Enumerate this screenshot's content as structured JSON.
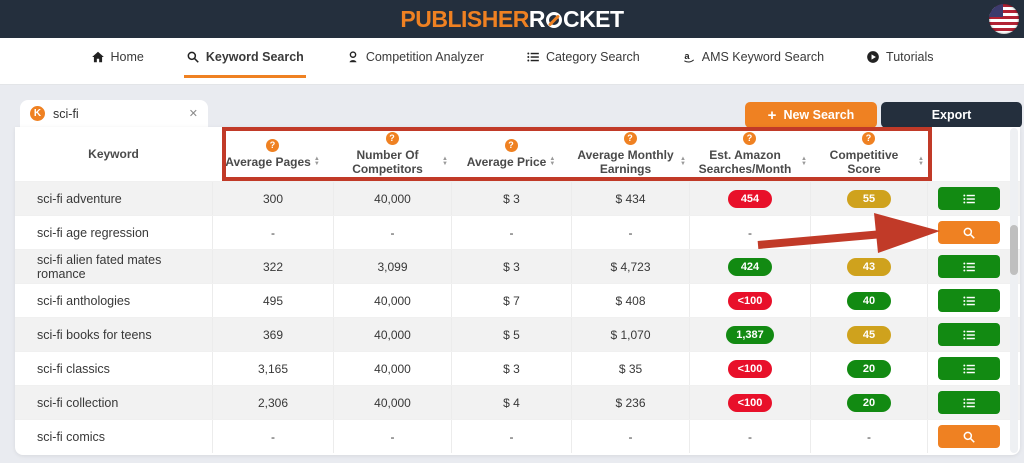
{
  "colors": {
    "accent_orange": "#ef8122",
    "dark_navy": "#242f3d",
    "pill_red": "#e8102a",
    "pill_green": "#128a12",
    "pill_gold": "#cfa21d",
    "annotation_red": "#c13a28"
  },
  "brand": {
    "name_left": "PUBLISHER",
    "name_right_pre": "R",
    "name_right_post": "CKET"
  },
  "nav": {
    "items": [
      {
        "label": "Home",
        "icon": "home-icon",
        "active": false
      },
      {
        "label": "Keyword Search",
        "icon": "search-icon",
        "active": true
      },
      {
        "label": "Competition Analyzer",
        "icon": "person-icon",
        "active": false
      },
      {
        "label": "Category Search",
        "icon": "list-icon",
        "active": false
      },
      {
        "label": "AMS Keyword Search",
        "icon": "amazon-icon",
        "active": false
      },
      {
        "label": "Tutorials",
        "icon": "play-icon",
        "active": false
      }
    ]
  },
  "toolbar": {
    "tab": {
      "favicon_letter": "K",
      "label": "sci-fi",
      "close_glyph": "✕"
    },
    "plus_glyph": "+",
    "new_search_label": "New Search",
    "export_label": "Export"
  },
  "table": {
    "help_glyph": "?",
    "sort_up_glyph": "▲",
    "sort_down_glyph": "▼",
    "columns": [
      {
        "label": "Keyword",
        "help": false,
        "sortable": false
      },
      {
        "label": "Average Pages",
        "help": true,
        "sortable": true
      },
      {
        "label": "Number Of Competitors",
        "help": true,
        "sortable": true
      },
      {
        "label": "Average Price",
        "help": true,
        "sortable": true
      },
      {
        "label": "Average Monthly Earnings",
        "help": true,
        "sortable": true
      },
      {
        "label": "Est. Amazon Searches/Month",
        "help": true,
        "sortable": true
      },
      {
        "label": "Competitive Score",
        "help": true,
        "sortable": true
      }
    ],
    "rows": [
      {
        "keyword": "sci-fi adventure",
        "pages": "300",
        "competitors": "40,000",
        "price": "$ 3",
        "earnings": "$ 434",
        "searches": "454",
        "searches_color": "red",
        "score": "55",
        "score_color": "gold",
        "action": "list"
      },
      {
        "keyword": "sci-fi age regression",
        "pages": "-",
        "competitors": "-",
        "price": "-",
        "earnings": "-",
        "searches": "-",
        "searches_color": null,
        "score": "-",
        "score_color": null,
        "action": "search"
      },
      {
        "keyword": "sci-fi alien fated mates romance",
        "pages": "322",
        "competitors": "3,099",
        "price": "$ 3",
        "earnings": "$ 4,723",
        "searches": "424",
        "searches_color": "green",
        "score": "43",
        "score_color": "gold",
        "action": "list"
      },
      {
        "keyword": "sci-fi anthologies",
        "pages": "495",
        "competitors": "40,000",
        "price": "$ 7",
        "earnings": "$ 408",
        "searches": "<100",
        "searches_color": "red",
        "score": "40",
        "score_color": "green",
        "action": "list"
      },
      {
        "keyword": "sci-fi books for teens",
        "pages": "369",
        "competitors": "40,000",
        "price": "$ 5",
        "earnings": "$ 1,070",
        "searches": "1,387",
        "searches_color": "green",
        "score": "45",
        "score_color": "gold",
        "action": "list"
      },
      {
        "keyword": "sci-fi classics",
        "pages": "3,165",
        "competitors": "40,000",
        "price": "$ 3",
        "earnings": "$ 35",
        "searches": "<100",
        "searches_color": "red",
        "score": "20",
        "score_color": "green",
        "action": "list"
      },
      {
        "keyword": "sci-fi collection",
        "pages": "2,306",
        "competitors": "40,000",
        "price": "$ 4",
        "earnings": "$ 236",
        "searches": "<100",
        "searches_color": "red",
        "score": "20",
        "score_color": "green",
        "action": "list"
      },
      {
        "keyword": "sci-fi comics",
        "pages": "-",
        "competitors": "-",
        "price": "-",
        "earnings": "-",
        "searches": "-",
        "searches_color": null,
        "score": "-",
        "score_color": null,
        "action": "search"
      }
    ]
  }
}
